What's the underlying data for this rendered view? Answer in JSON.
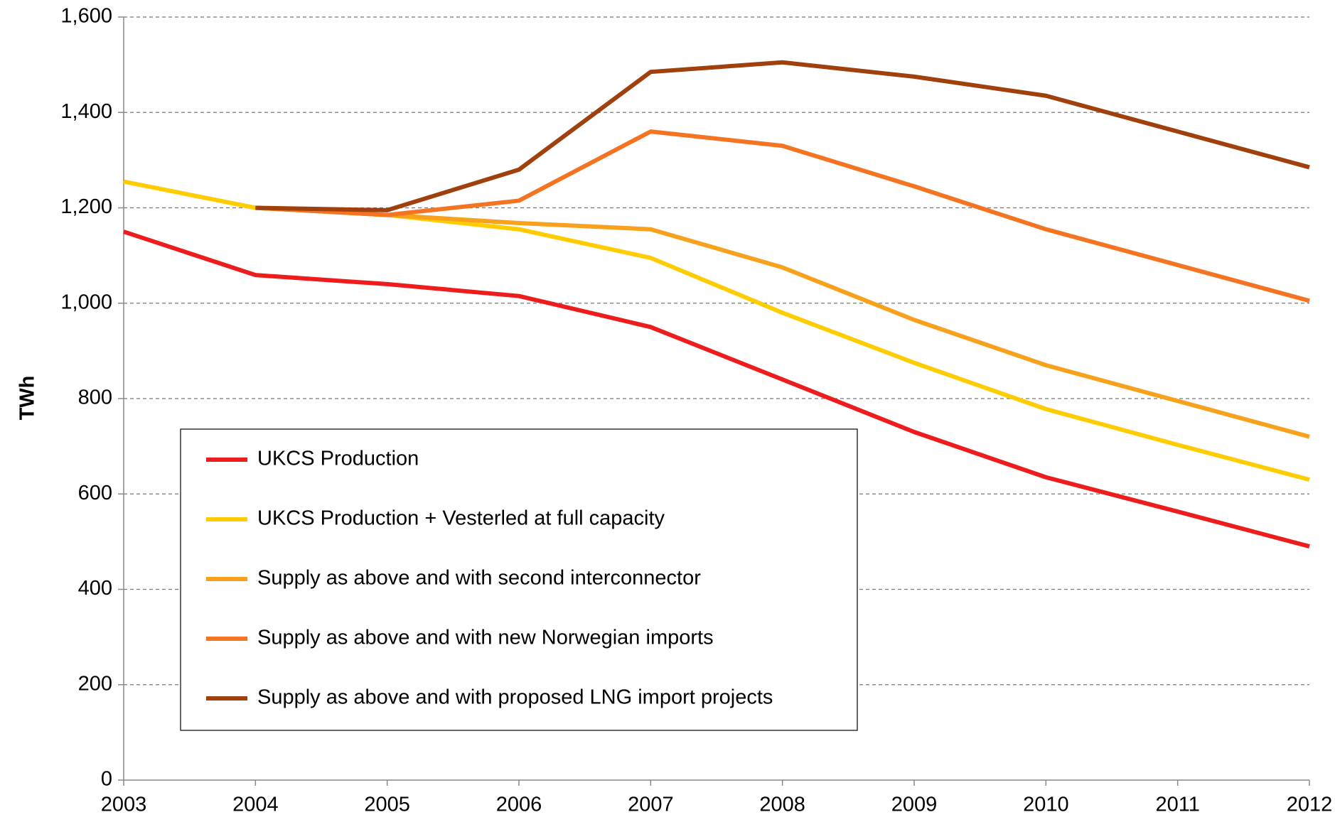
{
  "chart_data": {
    "type": "line",
    "ylabel": "TWh",
    "categories": [
      "2003",
      "2004",
      "2005",
      "2006",
      "2007",
      "2008",
      "2009",
      "2010",
      "2011",
      "2012"
    ],
    "series": [
      {
        "name": "UKCS Production",
        "color": "#ee1c1c",
        "values": [
          1150,
          1059,
          1040,
          1015,
          950,
          840,
          730,
          635,
          563,
          490
        ]
      },
      {
        "name": "UKCS Production + Vesterled at full capacity",
        "color": "#ffcc00",
        "values": [
          1255,
          1200,
          1185,
          1155,
          1095,
          980,
          875,
          778,
          703,
          630
        ]
      },
      {
        "name": "Supply as above and with second interconnector",
        "color": "#f7a11c",
        "values": [
          null,
          1200,
          1185,
          1168,
          1155,
          1075,
          965,
          870,
          795,
          720
        ]
      },
      {
        "name": "Supply as above and with new Norwegian imports",
        "color": "#f57421",
        "values": [
          null,
          1200,
          1185,
          1215,
          1360,
          1330,
          1245,
          1155,
          1080,
          1005
        ]
      },
      {
        "name": "Supply as above and with proposed LNG import projects",
        "color": "#a0400d",
        "values": [
          null,
          1200,
          1195,
          1280,
          1485,
          1505,
          1475,
          1435,
          1360,
          1285
        ]
      }
    ],
    "ylim": [
      0,
      1600
    ],
    "yticks": [
      0,
      200,
      400,
      600,
      800,
      {
        "value": 1000,
        "label": "1,000"
      },
      {
        "value": 1200,
        "label": "1,200"
      },
      {
        "value": 1400,
        "label": "1,400"
      },
      {
        "value": 1600,
        "label": "1,600"
      }
    ],
    "grid": true,
    "legend_loc": "lower left"
  }
}
